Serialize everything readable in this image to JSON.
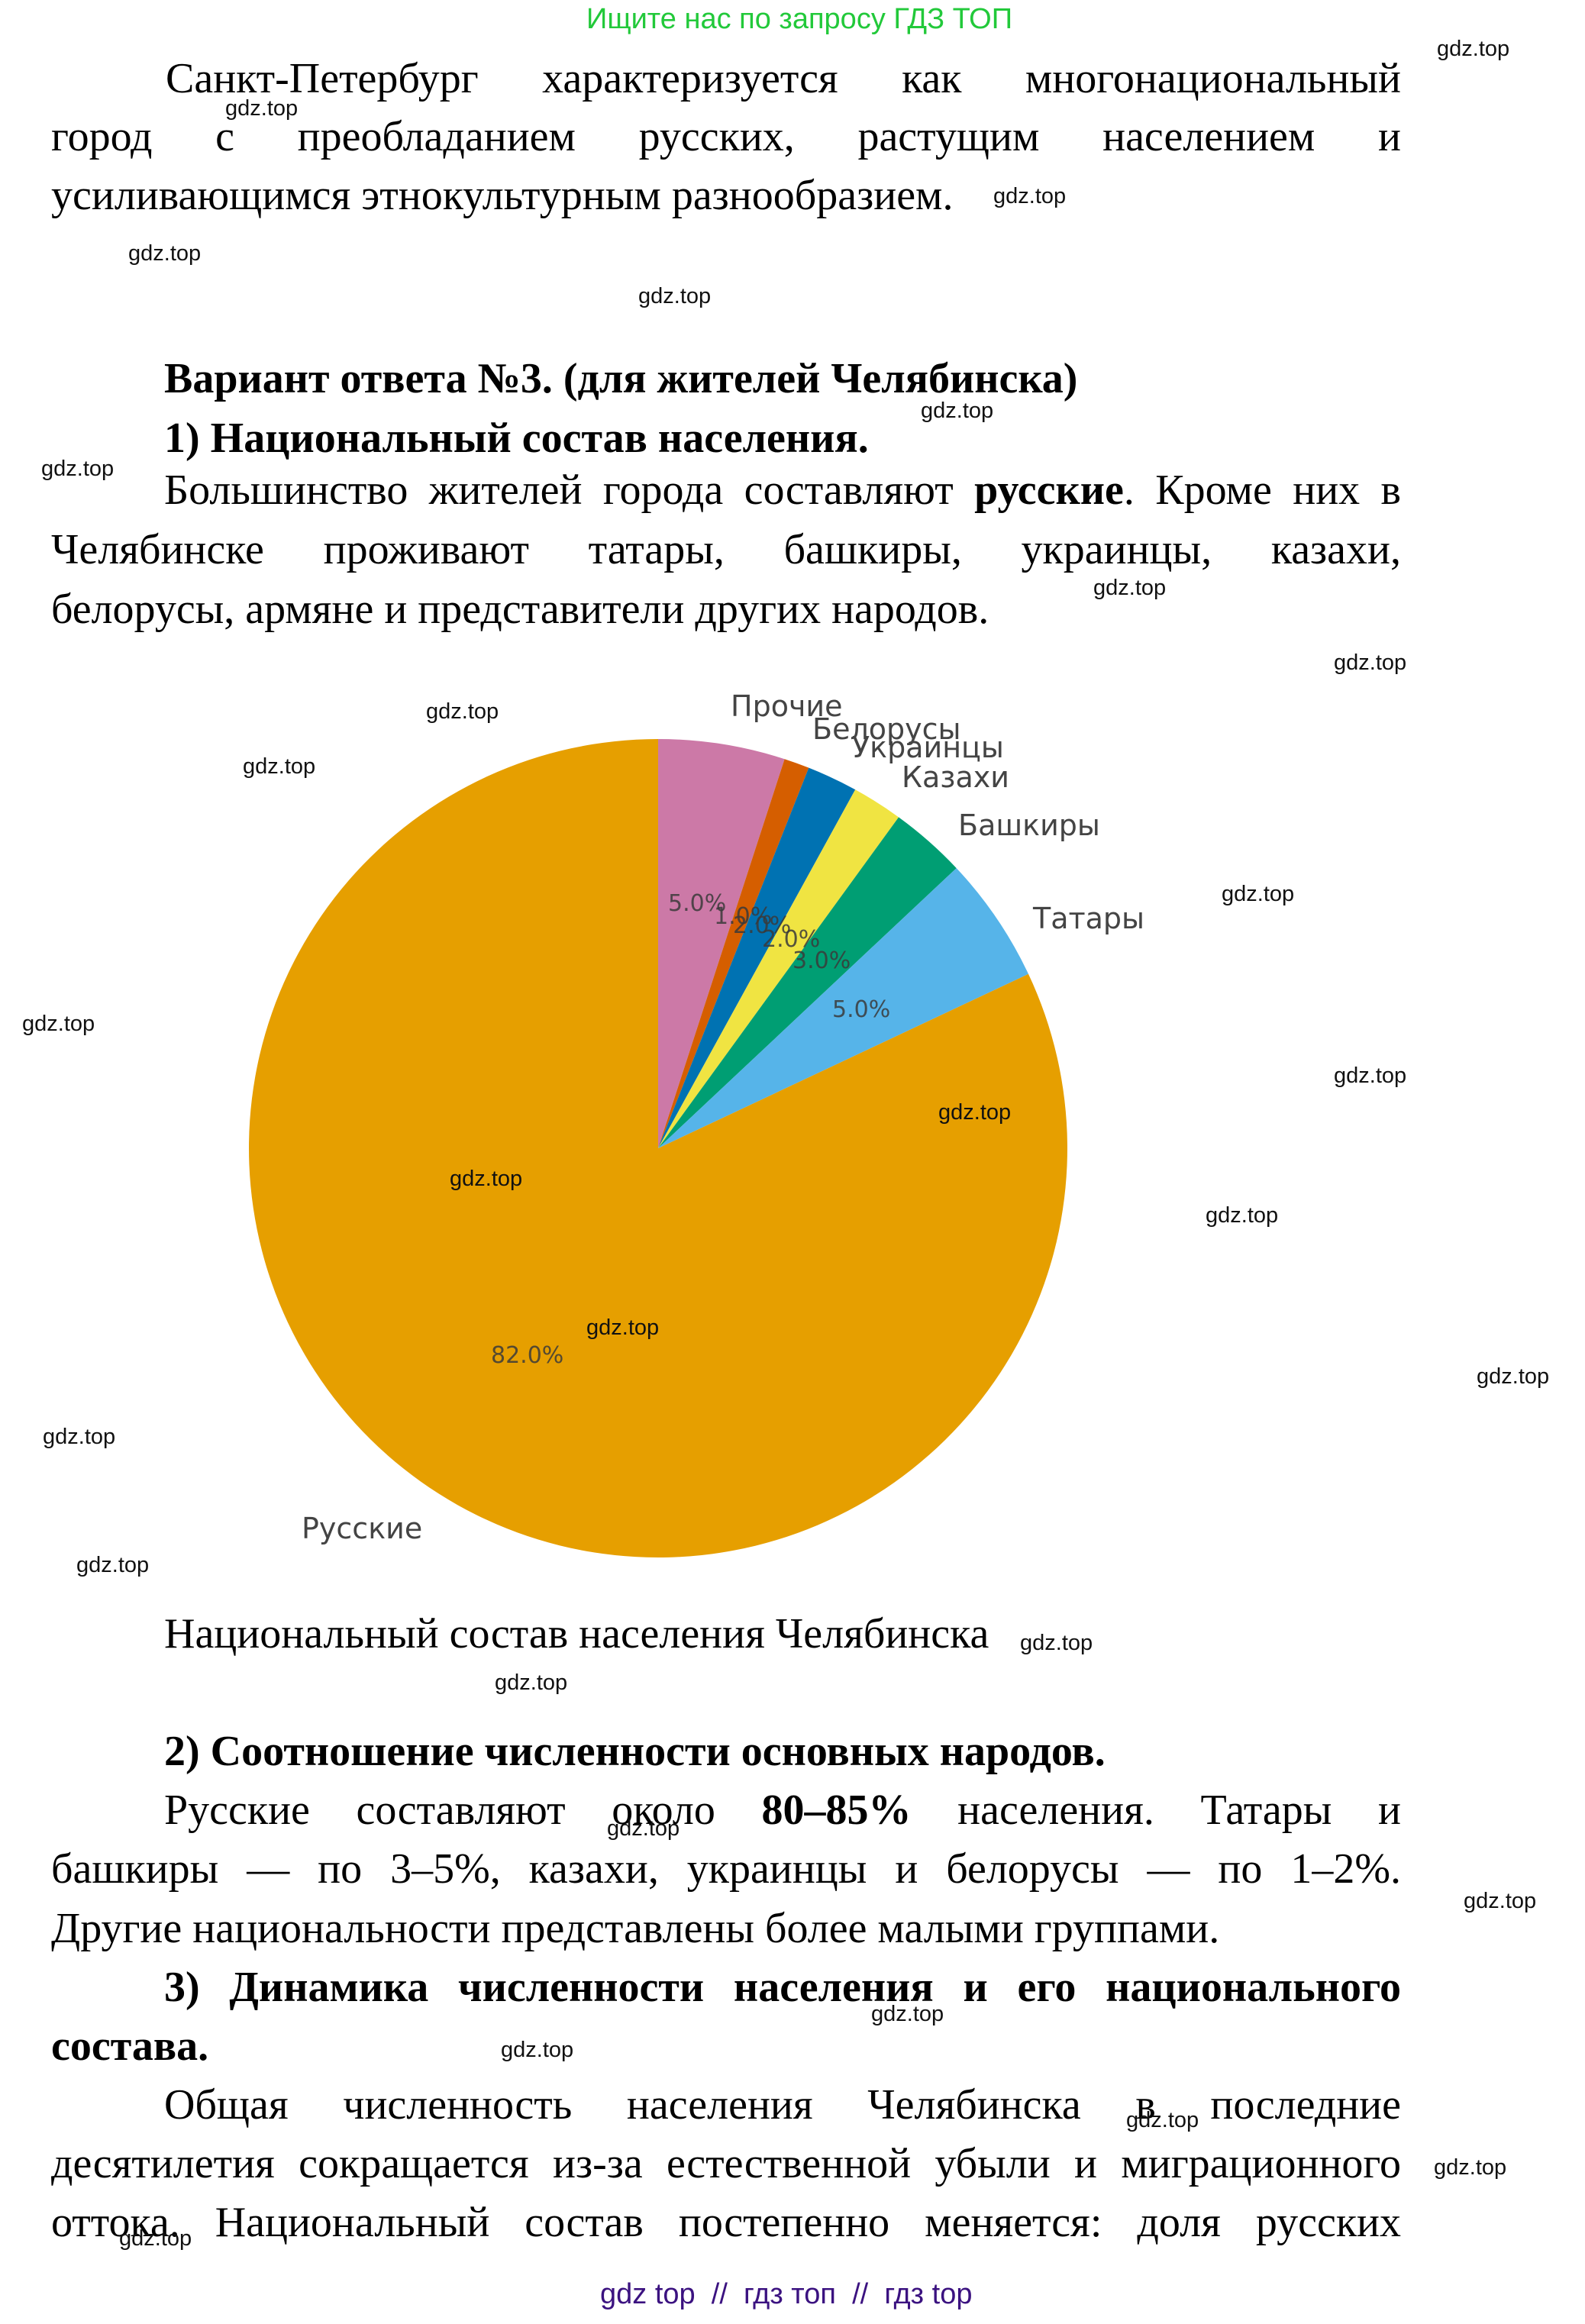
{
  "header": {
    "search_hint": "Ищите нас по запросу ГДЗ ТОП"
  },
  "paragraph_spb": {
    "lines": [
      "Санкт-Петербург характеризуется как многонациональный",
      "город с преобладанием русских, растущим населением и",
      "усиливающимся этнокультурным разнообразием."
    ]
  },
  "variant3": {
    "title": "Вариант ответа №3. (для жителей Челябинска)",
    "section1": {
      "heading": "1) Национальный состав населения.",
      "lines": [
        {
          "pre": "Большинство жителей города составляют ",
          "bold": "русские",
          "post": ". Кроме них в"
        },
        "Челябинске проживают татары, башкиры, украинцы, казахи,",
        "белорусы, армяне и представители других народов."
      ]
    },
    "chart_caption": "Национальный состав населения Челябинска",
    "section2": {
      "heading": "2) Соотношение численности основных народов.",
      "lines": [
        {
          "pre": "Русские составляют около ",
          "bold": "80–85%",
          "post": " населения. Татары и"
        },
        "башкиры — по 3–5%, казахи, украинцы и белорусы — по 1–2%.",
        "Другие национальности представлены более малыми группами."
      ]
    },
    "section3": {
      "heading_line1": "3) Динамика численности населения и его национального",
      "heading_line2": "состава.",
      "lines": [
        "Общая численность населения Челябинска в последние",
        "десятилетия сокращается из-за естественной убыли и миграционного",
        "оттока. Национальный состав постепенно меняется: доля русских"
      ]
    }
  },
  "chart_data": {
    "type": "pie",
    "title": "Национальный состав населения Челябинска",
    "categories": [
      "Русские",
      "Татары",
      "Башкиры",
      "Казахи",
      "Украинцы",
      "Белорусы",
      "Прочие"
    ],
    "values": [
      82.0,
      5.0,
      3.0,
      2.0,
      2.0,
      1.0,
      5.0
    ],
    "value_labels": [
      "82.0%",
      "5.0%",
      "3.0%",
      "2.0%",
      "2.0%",
      "1.0%",
      "5.0%"
    ],
    "colors": [
      "#E69F00",
      "#56B4E9",
      "#009E73",
      "#F0E442",
      "#0072B2",
      "#D55E00",
      "#CC79A7"
    ],
    "startangle": 90,
    "direction": "clockwise from top: Прочие, Белорусы, Украинцы, Казахи, Башкиры, Татары, Русские",
    "legend": "none (labels outside slices)"
  },
  "watermarks": {
    "text": "gdz.top",
    "count": 30
  },
  "footer": {
    "text": "gdz top  //  гдз топ  //  гдз top"
  }
}
